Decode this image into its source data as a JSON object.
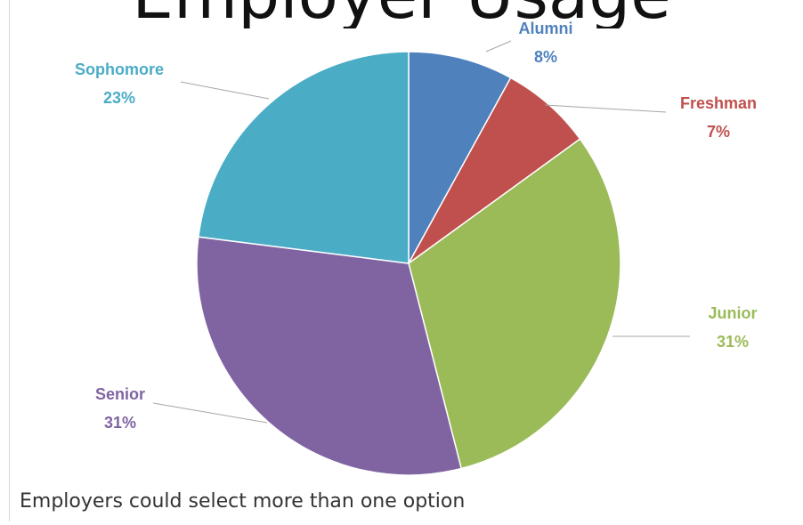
{
  "slide": {
    "title": "Employer Usage",
    "footnote": "Employers could select more than one option"
  },
  "chart_data": {
    "type": "pie",
    "title": "",
    "slices": [
      {
        "label": "Alumni",
        "value": 8,
        "percent_label": "8%",
        "color": "#4f81bd"
      },
      {
        "label": "Freshman",
        "value": 7,
        "percent_label": "7%",
        "color": "#c0504d"
      },
      {
        "label": "Junior",
        "value": 31,
        "percent_label": "31%",
        "color": "#9bbb59"
      },
      {
        "label": "Senior",
        "value": 31,
        "percent_label": "31%",
        "color": "#8064a2"
      },
      {
        "label": "Sophomore",
        "value": 23,
        "percent_label": "23%",
        "color": "#4bacc6"
      }
    ],
    "legend": "none",
    "data_labels": "outside with leader lines"
  }
}
